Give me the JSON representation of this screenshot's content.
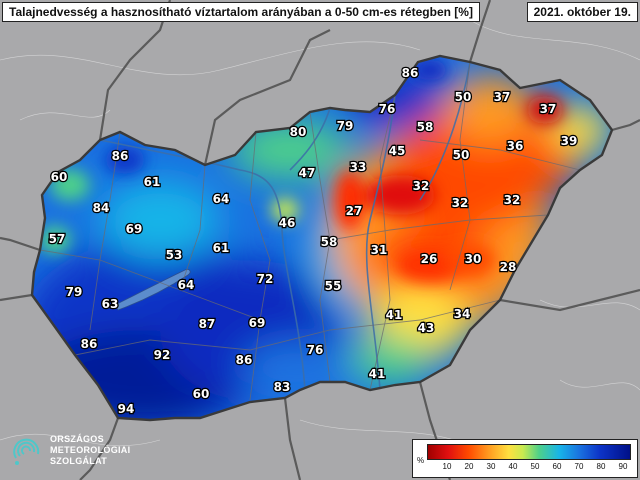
{
  "header": {
    "title": "Talajnedvesség a hasznosítható víztartalom arányában a 0-50 cm-es rétegben [%]",
    "date": "2021. október 19."
  },
  "legend": {
    "unit": "%",
    "ticks": [
      "10",
      "20",
      "30",
      "40",
      "50",
      "60",
      "70",
      "80",
      "90"
    ]
  },
  "logo": {
    "line1": "ORSZÁGOS",
    "line2": "METEOROLÓGIAI",
    "line3": "SZOLGÁLAT"
  },
  "values": [
    "86",
    "50",
    "37",
    "37",
    "76",
    "80",
    "79",
    "58",
    "36",
    "39",
    "45",
    "50",
    "33",
    "47",
    "86",
    "60",
    "61",
    "32",
    "32",
    "32",
    "64",
    "84",
    "27",
    "46",
    "69",
    "58",
    "57",
    "31",
    "26",
    "30",
    "61",
    "53",
    "28",
    "72",
    "64",
    "55",
    "79",
    "63",
    "87",
    "69",
    "41",
    "43",
    "34",
    "86",
    "92",
    "86",
    "76",
    "41",
    "83",
    "60",
    "94"
  ],
  "colors": {
    "frame_bg": "#a9a9ab",
    "dry": "#e01010",
    "wet": "#001088"
  }
}
